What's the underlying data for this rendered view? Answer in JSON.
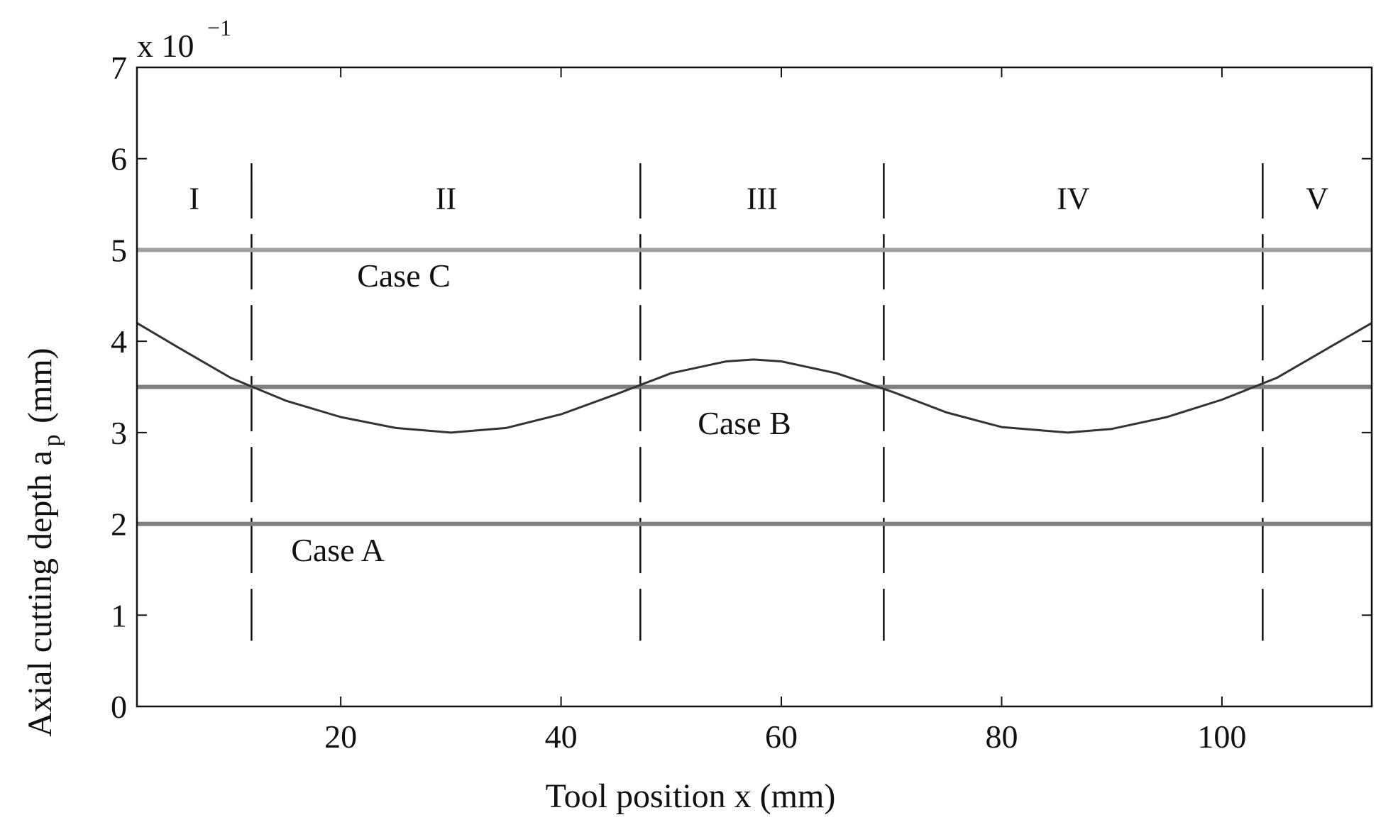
{
  "chart_data": {
    "type": "line",
    "xlabel": "Tool position x (mm)",
    "ylabel": {
      "text": "Axial cutting depth a",
      "subscript": "p",
      "unit": "(mm)"
    },
    "y_multiplier": {
      "base": "x 10",
      "exponent": "−1"
    },
    "xlim": [
      1.5,
      113.6
    ],
    "xticks": [
      20,
      40,
      60,
      80,
      100
    ],
    "ylim": [
      0,
      7
    ],
    "yticks": [
      0,
      1,
      2,
      3,
      4,
      5,
      6,
      7
    ],
    "x": [
      1.5,
      5,
      10,
      15,
      20,
      25,
      30,
      35,
      40,
      45,
      50,
      55,
      57.5,
      60,
      65,
      70,
      75,
      80,
      86,
      90,
      95,
      100,
      105,
      110,
      113.6
    ],
    "series": [
      {
        "name": "Case A",
        "color": "#808080",
        "constant": 2
      },
      {
        "name": "Case B",
        "color": "#808080",
        "constant": 3.5
      },
      {
        "name": "Case C",
        "color": "#a0a0a0",
        "constant": 5
      },
      {
        "color": "#333333",
        "values": [
          4.2,
          3.95,
          3.6,
          3.35,
          3.17,
          3.05,
          3.0,
          3.05,
          3.2,
          3.42,
          3.65,
          3.78,
          3.8,
          3.78,
          3.65,
          3.45,
          3.22,
          3.06,
          3.0,
          3.04,
          3.17,
          3.36,
          3.6,
          3.95,
          4.2
        ]
      }
    ],
    "boundaries": [
      11.9,
      47.2,
      69.3,
      103.7
    ],
    "regions": [
      "I",
      "II",
      "III",
      "IV",
      "V"
    ]
  }
}
